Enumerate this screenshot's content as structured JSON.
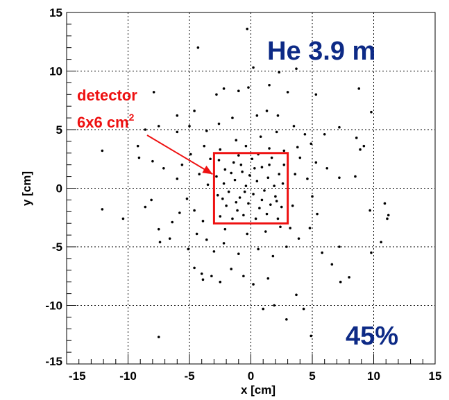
{
  "chart_data": {
    "type": "scatter",
    "xlabel": "x [cm]",
    "ylabel": "y [cm]",
    "xlim": [
      -15,
      15
    ],
    "ylim": [
      -15,
      15
    ],
    "xticks": [
      "-15",
      "-10",
      "-5",
      "0",
      "5",
      "10",
      "15"
    ],
    "yticks": [
      "-15",
      "-10",
      "-5",
      "0",
      "5",
      "10",
      "15"
    ],
    "grid": true,
    "marker_color": "#000000",
    "annotations": {
      "gas_label": "He  3.9 m",
      "efficiency": "45%",
      "detector_line1": "detector",
      "detector_line2": "6x6 cm",
      "detector_sup": "2",
      "label_color": "#0d2a86",
      "detector_color": "#ee1111"
    },
    "detector_box": {
      "x": [
        -3,
        3
      ],
      "y": [
        -3,
        3
      ]
    },
    "points": [
      [
        -0.3,
        13.6
      ],
      [
        -4.3,
        12.0
      ],
      [
        0.2,
        10.3
      ],
      [
        2.3,
        9.9
      ],
      [
        3.7,
        10.2
      ],
      [
        1.5,
        8.8
      ],
      [
        -0.2,
        8.6
      ],
      [
        -2.2,
        8.5
      ],
      [
        -1.0,
        8.3
      ],
      [
        3.0,
        8.2
      ],
      [
        5.3,
        8.0
      ],
      [
        8.8,
        8.5
      ],
      [
        9.8,
        6.5
      ],
      [
        -2.8,
        8.0
      ],
      [
        -7.9,
        8.2
      ],
      [
        -6.0,
        6.2
      ],
      [
        -4.6,
        6.6
      ],
      [
        -5.0,
        5.3
      ],
      [
        -6.0,
        4.8
      ],
      [
        -7.5,
        5.3
      ],
      [
        -8.6,
        5.0
      ],
      [
        -9.2,
        3.6
      ],
      [
        -9.1,
        2.6
      ],
      [
        -8.0,
        2.3
      ],
      [
        -7.1,
        1.7
      ],
      [
        -12.1,
        3.2
      ],
      [
        -12.1,
        -1.8
      ],
      [
        -10.4,
        -2.6
      ],
      [
        -8.6,
        -1.6
      ],
      [
        -8.1,
        -1.0
      ],
      [
        -7.5,
        -3.5
      ],
      [
        -7.4,
        -4.6
      ],
      [
        -6.6,
        -4.3
      ],
      [
        -6.4,
        -2.9
      ],
      [
        -7.5,
        -12.7
      ],
      [
        -5.1,
        -5.2
      ],
      [
        -4.6,
        -6.8
      ],
      [
        -4.0,
        -7.3
      ],
      [
        -3.9,
        -7.8
      ],
      [
        -3.2,
        -7.5
      ],
      [
        -2.5,
        -8.0
      ],
      [
        -1.6,
        -6.9
      ],
      [
        -0.6,
        -7.5
      ],
      [
        0.2,
        -8.2
      ],
      [
        1.4,
        -7.7
      ],
      [
        1.9,
        -10.0
      ],
      [
        1.0,
        -10.3
      ],
      [
        2.9,
        -11.2
      ],
      [
        4.3,
        -10.3
      ],
      [
        4.9,
        -12.6
      ],
      [
        3.7,
        -9.1
      ],
      [
        5.8,
        -5.5
      ],
      [
        6.6,
        -6.5
      ],
      [
        7.2,
        -5.0
      ],
      [
        8.0,
        -7.6
      ],
      [
        7.3,
        -8.0
      ],
      [
        9.8,
        -5.5
      ],
      [
        10.6,
        -4.6
      ],
      [
        10.9,
        -1.3
      ],
      [
        11.2,
        -2.3
      ],
      [
        11.1,
        -2.6
      ],
      [
        9.7,
        -1.9
      ],
      [
        8.5,
        1.0
      ],
      [
        8.9,
        3.3
      ],
      [
        9.2,
        3.6
      ],
      [
        8.6,
        4.3
      ],
      [
        7.2,
        5.2
      ],
      [
        6.0,
        4.6
      ],
      [
        6.2,
        1.7
      ],
      [
        7.2,
        0.9
      ],
      [
        4.9,
        3.8
      ],
      [
        4.4,
        4.6
      ],
      [
        3.5,
        5.3
      ],
      [
        2.2,
        6.2
      ],
      [
        1.3,
        6.6
      ],
      [
        0.5,
        6.2
      ],
      [
        -1.5,
        6.0
      ],
      [
        -2.6,
        5.5
      ],
      [
        -3.6,
        4.9
      ],
      [
        -1.2,
        4.1
      ],
      [
        0.8,
        4.4
      ],
      [
        2.1,
        4.8
      ],
      [
        3.8,
        3.5
      ],
      [
        -3.8,
        3.6
      ],
      [
        -4.9,
        2.9
      ],
      [
        -5.6,
        2.0
      ],
      [
        -6.0,
        0.8
      ],
      [
        -5.2,
        -0.9
      ],
      [
        -5.8,
        -2.1
      ],
      [
        -4.4,
        -3.9
      ],
      [
        -3.6,
        -4.4
      ],
      [
        -3.0,
        -5.4
      ],
      [
        -2.2,
        -4.7
      ],
      [
        -1.0,
        -5.6
      ],
      [
        0.6,
        -5.2
      ],
      [
        1.8,
        -5.8
      ],
      [
        2.9,
        -5.0
      ],
      [
        3.9,
        -4.3
      ],
      [
        4.8,
        -3.4
      ],
      [
        5.4,
        -2.2
      ],
      [
        5.0,
        -0.7
      ],
      [
        4.6,
        0.8
      ],
      [
        5.3,
        2.2
      ],
      [
        4.0,
        2.6
      ],
      [
        -4.2,
        1.2
      ],
      [
        -4.6,
        -1.9
      ],
      [
        -3.9,
        -2.8
      ],
      [
        -3.5,
        0.3
      ],
      [
        -3.3,
        2.5
      ],
      [
        3.4,
        -1.5
      ],
      [
        3.6,
        1.2
      ],
      [
        3.2,
        -3.4
      ],
      [
        -2.5,
        3.3
      ],
      [
        -0.4,
        3.6
      ],
      [
        1.5,
        3.4
      ],
      [
        2.7,
        3.2
      ],
      [
        -2.1,
        -3.5
      ],
      [
        -0.3,
        -3.9
      ],
      [
        1.2,
        -3.7
      ],
      [
        2.4,
        -3.3
      ],
      [
        -2.6,
        2.4
      ],
      [
        -2.1,
        1.6
      ],
      [
        -1.4,
        2.2
      ],
      [
        -0.7,
        1.4
      ],
      [
        0.1,
        2.5
      ],
      [
        0.9,
        1.8
      ],
      [
        1.7,
        2.6
      ],
      [
        2.3,
        1.2
      ],
      [
        2.6,
        0.4
      ],
      [
        1.4,
        0.9
      ],
      [
        0.5,
        0.6
      ],
      [
        -0.4,
        0.2
      ],
      [
        -1.3,
        0.7
      ],
      [
        -2.2,
        0.4
      ],
      [
        -2.7,
        -0.6
      ],
      [
        -1.8,
        -0.3
      ],
      [
        -0.9,
        -0.8
      ],
      [
        0.2,
        -0.5
      ],
      [
        1.1,
        -0.2
      ],
      [
        2.0,
        -0.7
      ],
      [
        2.5,
        -1.6
      ],
      [
        1.6,
        -1.4
      ],
      [
        0.7,
        -1.7
      ],
      [
        -0.2,
        -1.3
      ],
      [
        -1.1,
        -1.9
      ],
      [
        -2.0,
        -1.5
      ],
      [
        -2.5,
        -2.4
      ],
      [
        -1.5,
        -2.6
      ],
      [
        -0.6,
        -2.3
      ],
      [
        0.4,
        -2.6
      ],
      [
        1.3,
        -2.2
      ],
      [
        2.2,
        -2.6
      ],
      [
        2.7,
        2.0
      ],
      [
        -1.0,
        2.8
      ],
      [
        0.6,
        2.9
      ],
      [
        -2.8,
        1.0
      ],
      [
        1.9,
        0.2
      ],
      [
        -0.1,
        1.1
      ],
      [
        -1.6,
        1.3
      ],
      [
        0.9,
        -1.0
      ],
      [
        -0.5,
        -0.3
      ],
      [
        1.5,
        2.0
      ],
      [
        -2.3,
        -0.9
      ],
      [
        0.3,
        1.7
      ],
      [
        -1.2,
        -1.2
      ],
      [
        2.1,
        -1.1
      ],
      [
        -0.8,
        2.0
      ]
    ]
  }
}
